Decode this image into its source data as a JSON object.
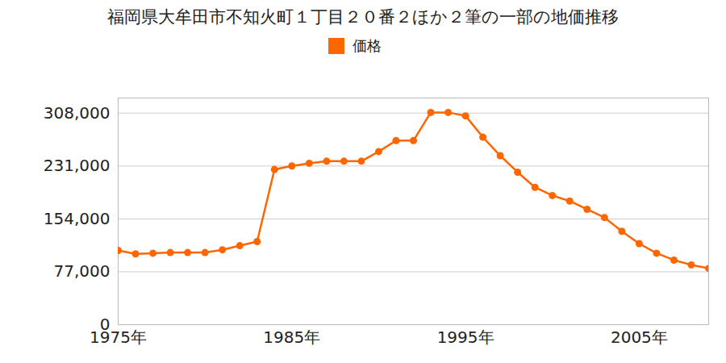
{
  "chart_data": {
    "type": "line",
    "title": "福岡県大牟田市不知火町１丁目２０番２ほか２筆の一部の地価推移",
    "x": [
      1975,
      1976,
      1977,
      1978,
      1979,
      1980,
      1981,
      1982,
      1983,
      1984,
      1985,
      1986,
      1987,
      1988,
      1989,
      1990,
      1991,
      1992,
      1993,
      1994,
      1995,
      1996,
      1997,
      1998,
      1999,
      2000,
      2001,
      2002,
      2003,
      2004,
      2005,
      2006,
      2007,
      2008,
      2009
    ],
    "series": [
      {
        "name": "価格",
        "color": "#ff6600",
        "marker": "circle",
        "values": [
          108000,
          103000,
          104000,
          105000,
          105000,
          105000,
          109000,
          115000,
          121000,
          226000,
          231000,
          235000,
          238000,
          238000,
          238000,
          252000,
          268000,
          268000,
          309000,
          309000,
          304000,
          273000,
          246000,
          222000,
          200000,
          188000,
          180000,
          168000,
          156000,
          136000,
          118000,
          104000,
          94000,
          87000,
          82000
        ]
      }
    ],
    "xlim": [
      1975,
      2009
    ],
    "xticks": [
      {
        "value": 1975,
        "label": "1975年"
      },
      {
        "value": 1985,
        "label": "1985年"
      },
      {
        "value": 1995,
        "label": "1995年"
      },
      {
        "value": 2005,
        "label": "2005年"
      }
    ],
    "ylim": [
      0,
      330000
    ],
    "yticks": [
      0,
      {
        "value": 77000,
        "label": "77,000"
      },
      {
        "value": 154000,
        "label": "154,000"
      },
      {
        "value": 231000,
        "label": "231,000"
      },
      {
        "value": 308000,
        "label": "308,000"
      }
    ],
    "grid": true,
    "legend": "top"
  }
}
